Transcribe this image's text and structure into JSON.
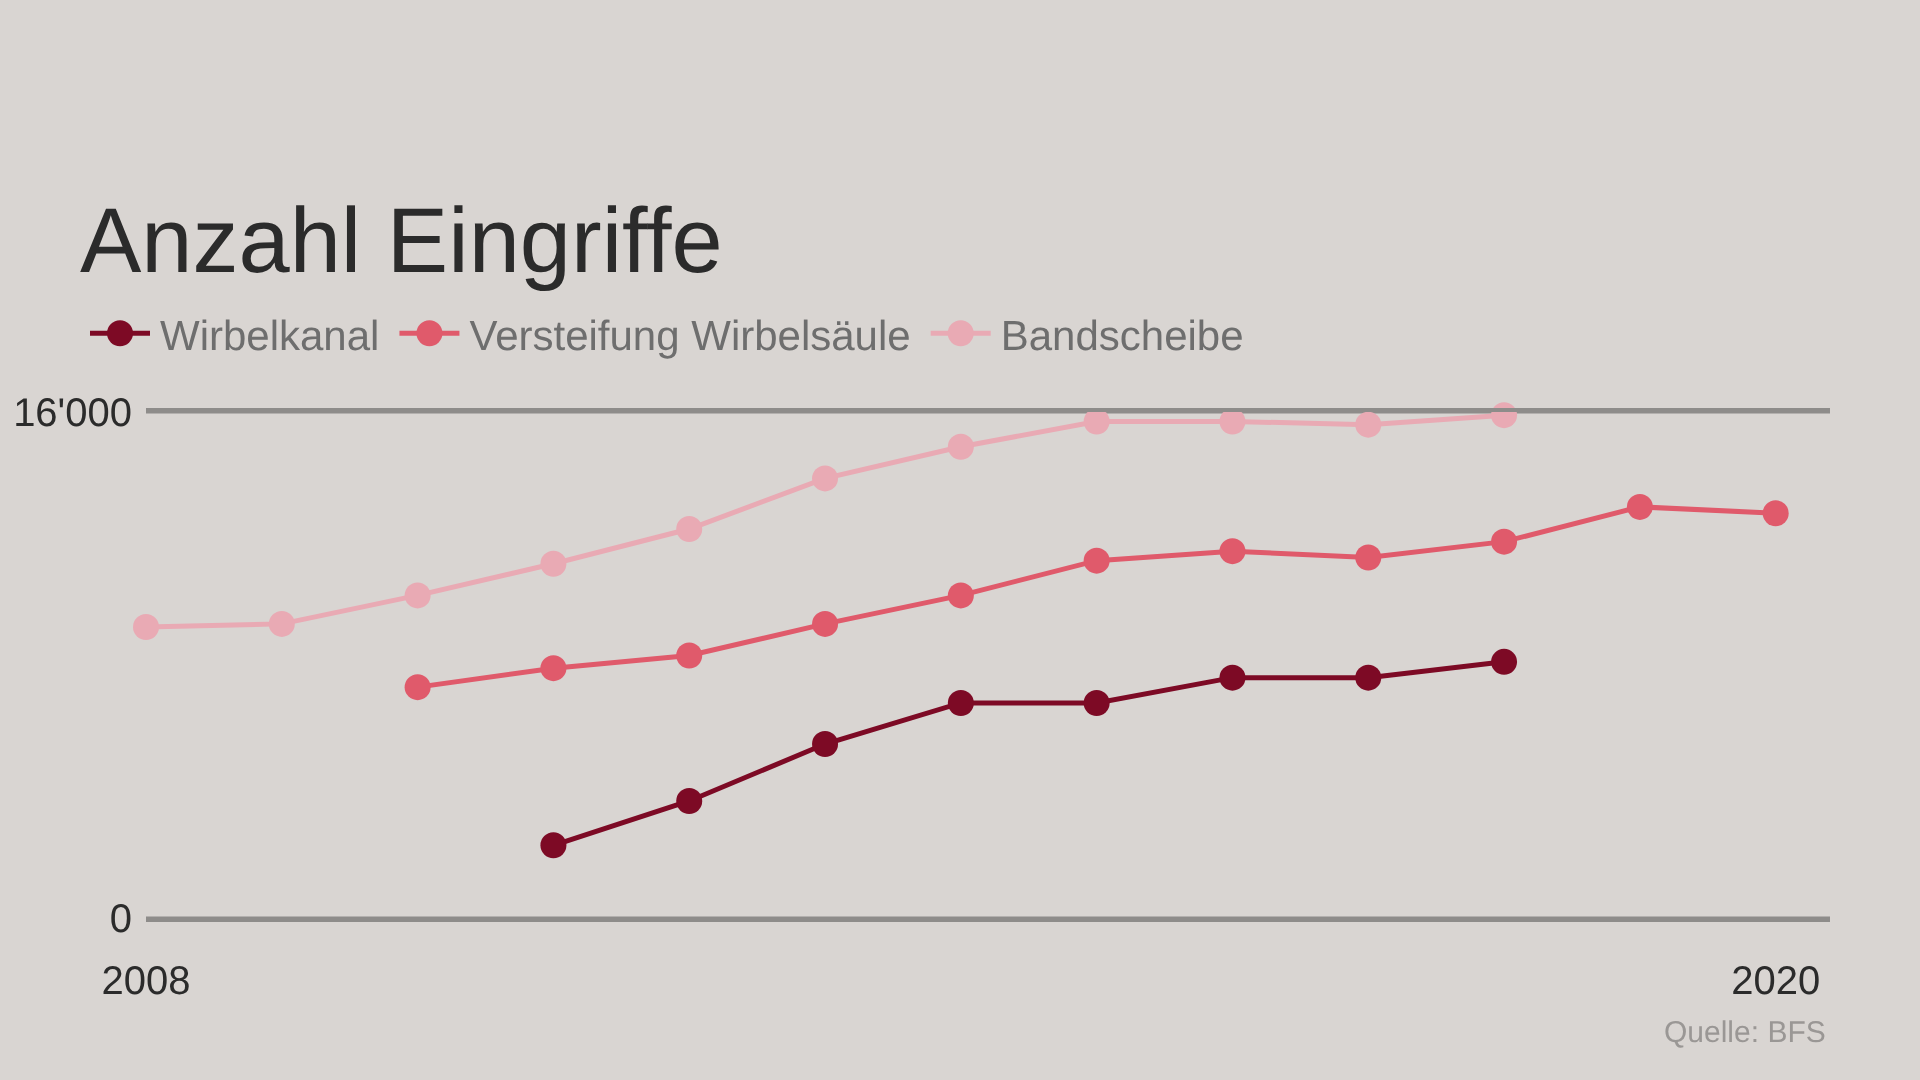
{
  "chart_data": {
    "type": "line",
    "title": "Anzahl Eingriffe",
    "x": [
      2008,
      2009,
      2010,
      2011,
      2012,
      2013,
      2014,
      2015,
      2016,
      2017,
      2018,
      2019,
      2020
    ],
    "xlim": [
      2008,
      2020.4
    ],
    "xticks": [
      2008,
      2020
    ],
    "ylim": [
      0,
      16000
    ],
    "yticks": [
      0,
      {
        "value": 16000,
        "label": "16'000"
      }
    ],
    "grid": "y",
    "legend": "top left",
    "marker": "circle",
    "line_style": "solid",
    "annotations": [
      "Quelle: BFS"
    ],
    "series": [
      {
        "name": "Wirbelkanal",
        "color": "#7d0a25",
        "values": [
          null,
          null,
          null,
          2300,
          3700,
          5500,
          6800,
          6800,
          7600,
          7600,
          8100,
          null,
          null
        ]
      },
      {
        "name": "Versteifung Wirbelsäule",
        "color": "#e05a6b",
        "values": [
          null,
          null,
          7300,
          7900,
          8300,
          9300,
          10200,
          11300,
          11600,
          11400,
          11900,
          13000,
          12800
        ]
      },
      {
        "name": "Bandscheibe",
        "color": "#e9aab4",
        "values": [
          9200,
          9300,
          10200,
          11200,
          12300,
          13900,
          14900,
          15700,
          15700,
          15600,
          15900,
          null,
          null
        ]
      }
    ]
  }
}
